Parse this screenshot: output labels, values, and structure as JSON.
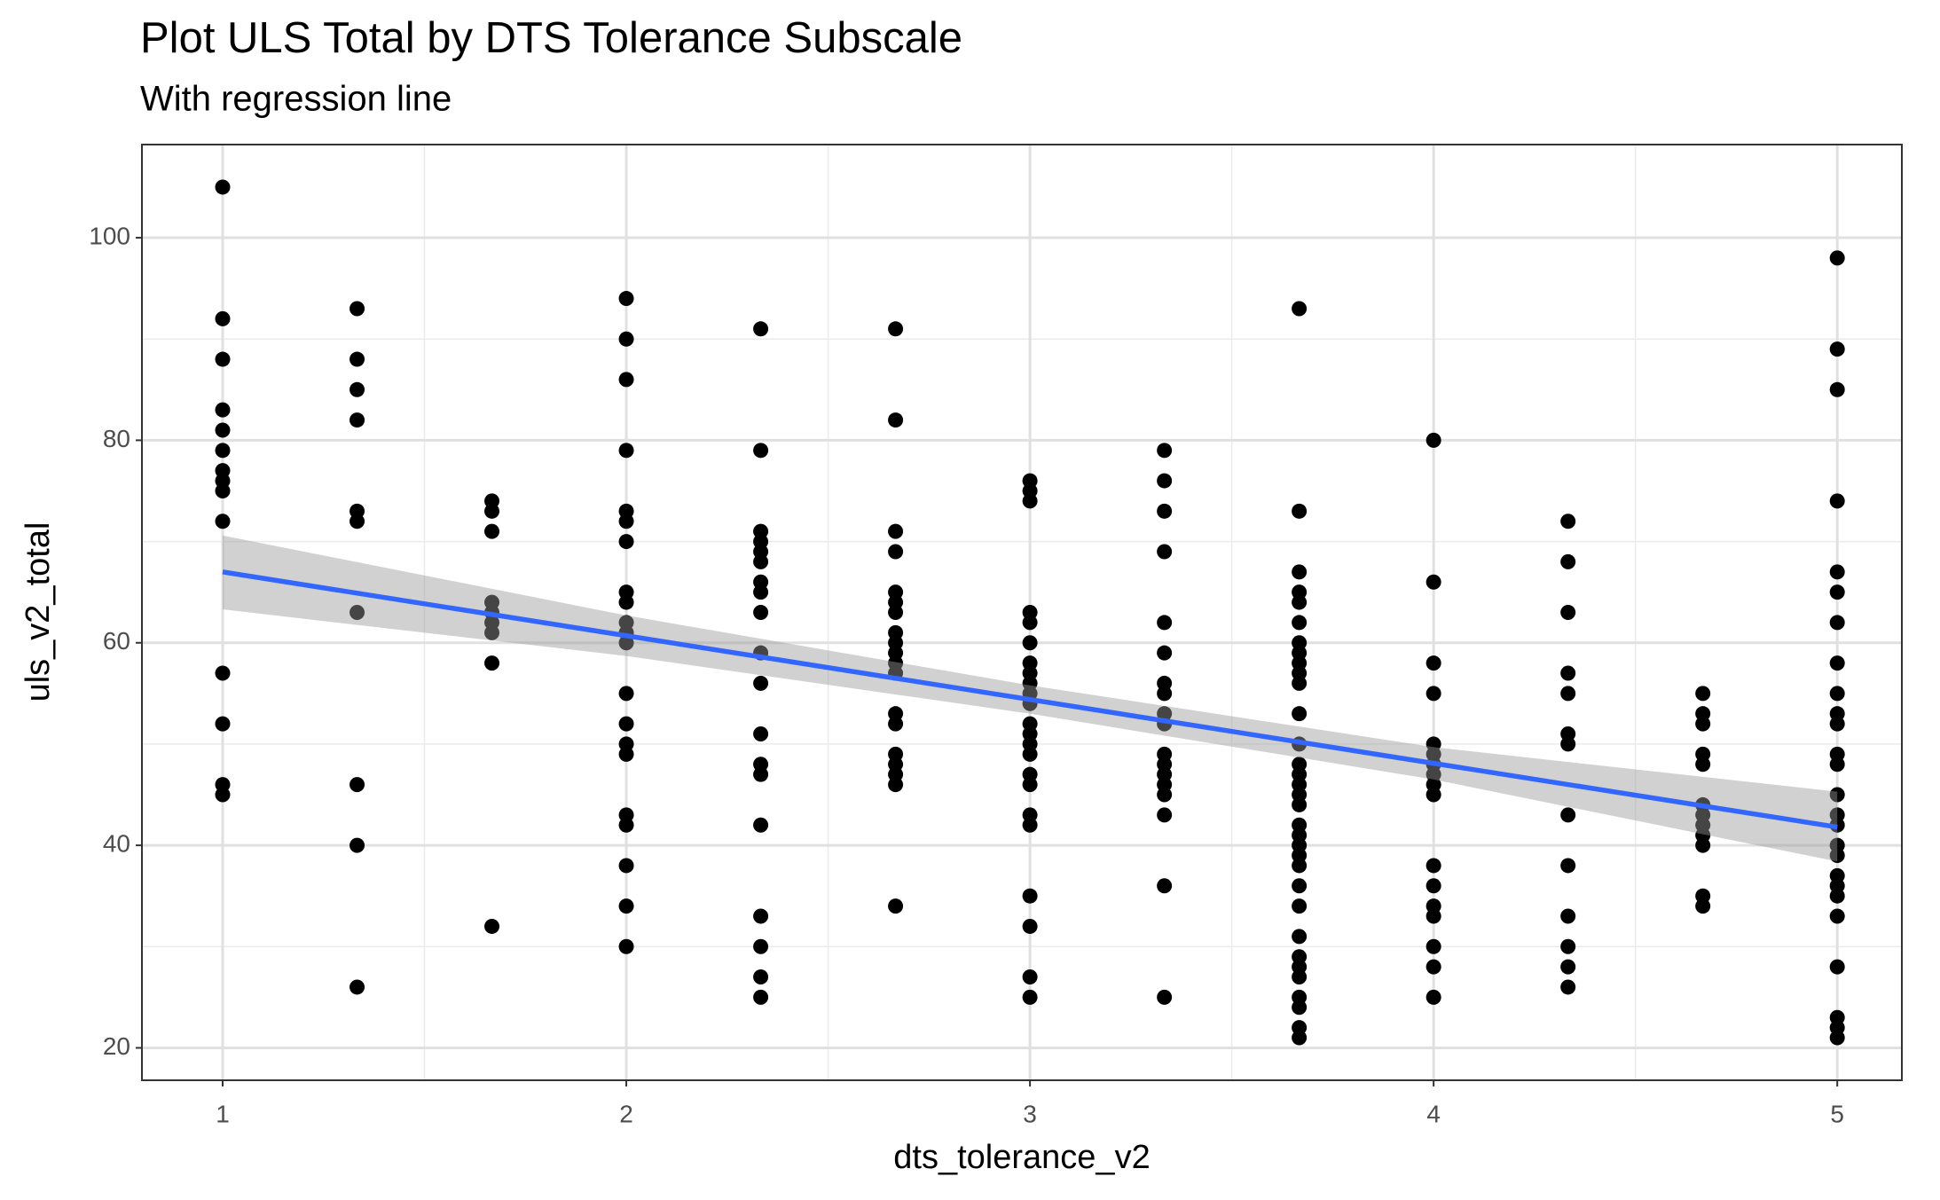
{
  "chart_data": {
    "type": "scatter",
    "title": "Plot ULS Total by DTS Tolerance Subscale",
    "subtitle": "With regression line",
    "x_label": "dts_tolerance_v2",
    "y_label": "uls_v2_total",
    "xlim": [
      0.8,
      5.16
    ],
    "ylim": [
      16.8,
      109.2
    ],
    "xticks": [
      1,
      2,
      3,
      4,
      5
    ],
    "yticks": [
      20,
      40,
      60,
      80,
      100
    ],
    "xgrid_minor": [
      1.5,
      2.5,
      3.5,
      4.5
    ],
    "ygrid_minor": [
      30,
      50,
      70,
      90
    ],
    "grid": true,
    "point_color": "#000000",
    "groups": [
      {
        "x": 1,
        "y": [
          105,
          92,
          88,
          83,
          81,
          79,
          77,
          76,
          75,
          72,
          57,
          52,
          46,
          45
        ]
      },
      {
        "x": 1.333,
        "y": [
          93,
          88,
          85,
          82,
          73,
          72,
          63,
          46,
          40,
          26
        ]
      },
      {
        "x": 1.667,
        "y": [
          74,
          73,
          71,
          64,
          63,
          62,
          61,
          58,
          32
        ]
      },
      {
        "x": 2,
        "y": [
          94,
          90,
          86,
          79,
          73,
          72,
          70,
          65,
          64,
          62,
          61,
          60,
          55,
          52,
          50,
          49,
          43,
          42,
          38,
          34,
          30
        ]
      },
      {
        "x": 2.333,
        "y": [
          91,
          79,
          71,
          70,
          69,
          68,
          66,
          65,
          63,
          59,
          56,
          51,
          48,
          47,
          42,
          33,
          30,
          27,
          25
        ]
      },
      {
        "x": 2.667,
        "y": [
          91,
          82,
          71,
          69,
          65,
          64,
          63,
          61,
          60,
          59,
          58,
          57,
          53,
          52,
          49,
          48,
          47,
          46,
          34
        ]
      },
      {
        "x": 3,
        "y": [
          76,
          75,
          74,
          63,
          62,
          60,
          58,
          57,
          56,
          55,
          54,
          52,
          51,
          50,
          49,
          47,
          46,
          43,
          42,
          35,
          32,
          27,
          25
        ]
      },
      {
        "x": 3.333,
        "y": [
          79,
          76,
          73,
          69,
          62,
          59,
          56,
          55,
          53,
          52,
          49,
          48,
          47,
          46,
          45,
          43,
          36,
          25
        ]
      },
      {
        "x": 3.667,
        "y": [
          93,
          73,
          67,
          65,
          64,
          62,
          60,
          59,
          58,
          57,
          56,
          53,
          50,
          48,
          47,
          46,
          45,
          44,
          42,
          41,
          40,
          39,
          38,
          36,
          34,
          31,
          29,
          28,
          27,
          25,
          24,
          22,
          21
        ]
      },
      {
        "x": 4,
        "y": [
          80,
          66,
          58,
          55,
          50,
          49,
          48,
          47,
          46,
          45,
          38,
          36,
          34,
          33,
          30,
          28,
          25
        ]
      },
      {
        "x": 4.333,
        "y": [
          72,
          68,
          63,
          57,
          55,
          51,
          50,
          43,
          38,
          33,
          30,
          28,
          26
        ]
      },
      {
        "x": 4.667,
        "y": [
          55,
          53,
          52,
          49,
          48,
          44,
          43,
          42,
          41,
          40,
          35,
          34
        ]
      },
      {
        "x": 5,
        "y": [
          98,
          89,
          85,
          74,
          67,
          65,
          62,
          58,
          55,
          53,
          52,
          49,
          48,
          45,
          43,
          42,
          40,
          39,
          37,
          36,
          35,
          33,
          28,
          23,
          22,
          21
        ]
      }
    ],
    "regression": {
      "color": "#3366FF",
      "band_color": "#999999",
      "x": [
        1,
        2,
        3,
        4,
        5
      ],
      "y": [
        67,
        60.7,
        54.4,
        48.1,
        41.8
      ],
      "lower": [
        63.3,
        58.7,
        53,
        46.5,
        38.4
      ],
      "upper": [
        70.6,
        62.7,
        55.8,
        49.7,
        45.3
      ]
    }
  }
}
